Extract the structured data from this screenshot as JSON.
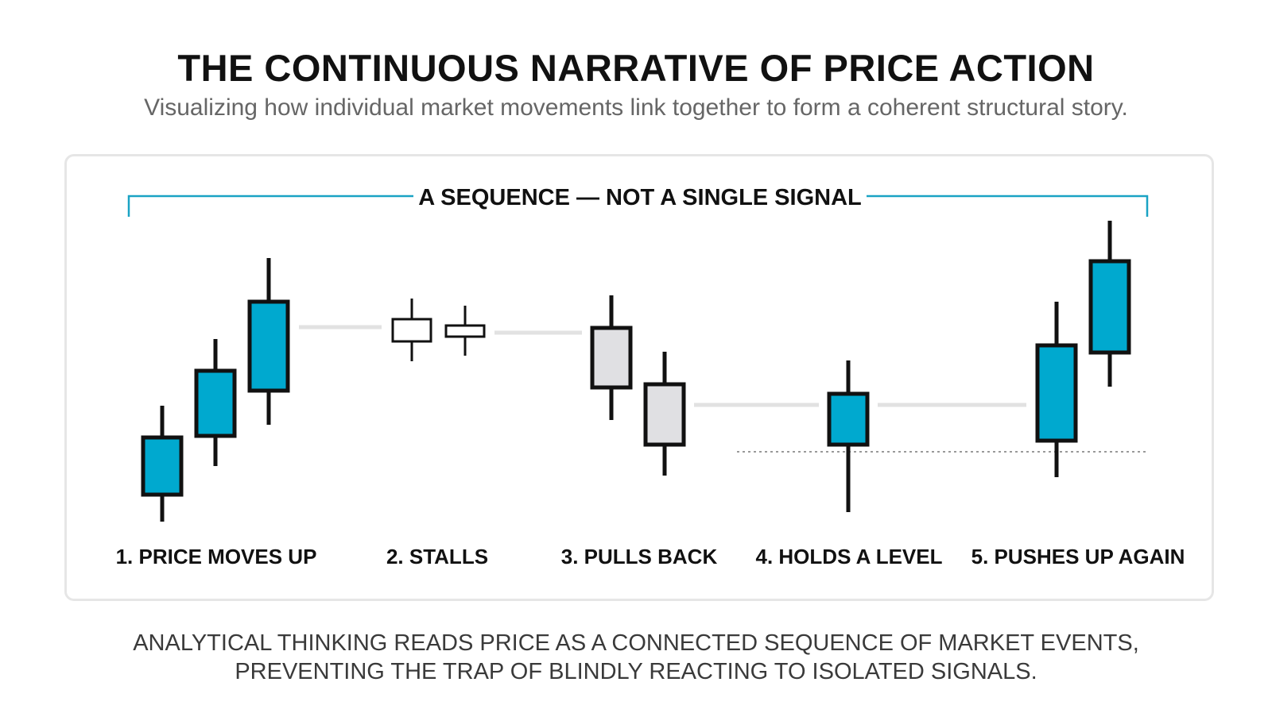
{
  "header": {
    "title": "THE CONTINUOUS NARRATIVE OF PRICE ACTION",
    "subtitle": "Visualizing how individual market movements link together to form a coherent structural story."
  },
  "panel": {
    "bracket_label": "A SEQUENCE — NOT A SINGLE SIGNAL",
    "stages": [
      {
        "label": "1. PRICE MOVES UP"
      },
      {
        "label": "2. STALLS"
      },
      {
        "label": "3. PULLS BACK"
      },
      {
        "label": "4. HOLDS A LEVEL"
      },
      {
        "label": "5. PUSHES UP AGAIN"
      }
    ],
    "colors": {
      "bullish": "#00a9cf",
      "stall": "#ffffff",
      "bearish": "#e0e0e3",
      "bracket": "#1aa3c4",
      "connector": "#e2e2e2",
      "level": "#999999",
      "outline": "#111111"
    }
  },
  "footer": {
    "line1": "ANALYTICAL THINKING READS PRICE AS A CONNECTED SEQUENCE OF MARKET EVENTS,",
    "line2": "PREVENTING THE TRAP OF BLINDLY REACTING TO ISOLATED SIGNALS."
  }
}
